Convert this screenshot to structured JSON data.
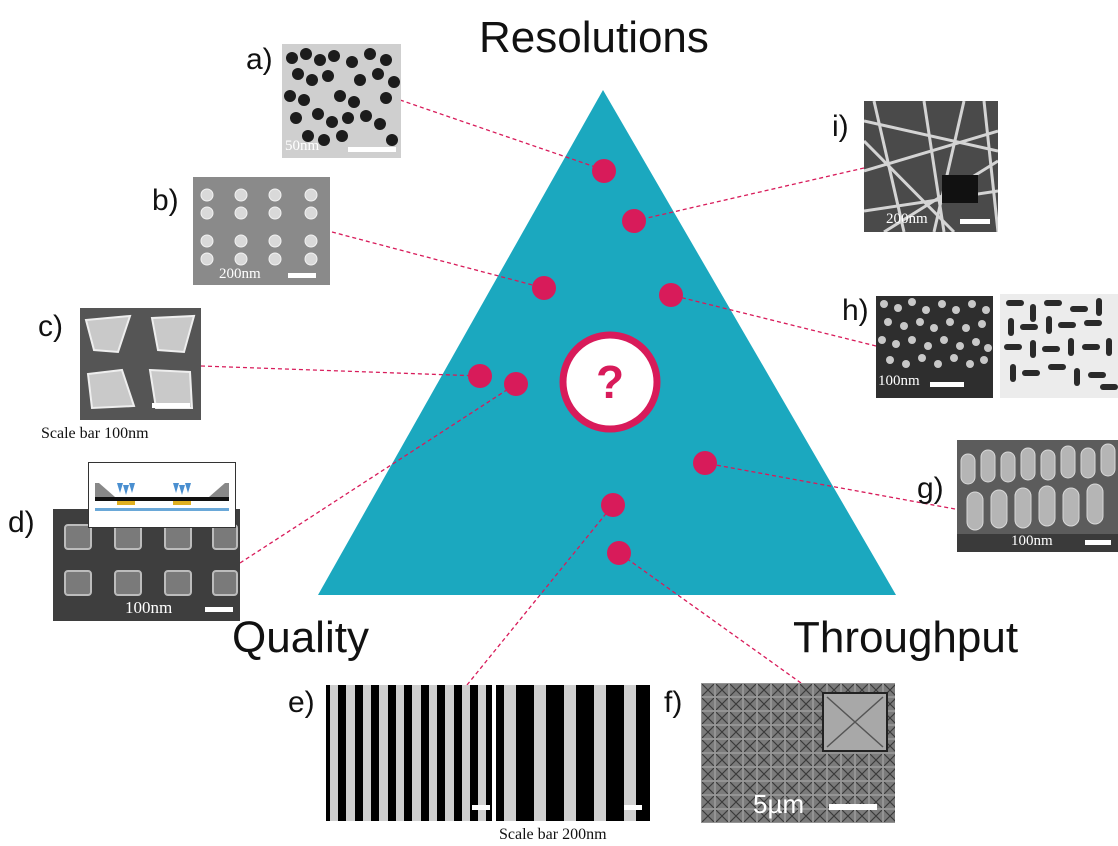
{
  "corners": {
    "top": "Resolutions",
    "bottom_left": "Quality",
    "bottom_right": "Throughput"
  },
  "center_symbol": "?",
  "panels": {
    "a": {
      "label": "a)",
      "scale": "50nm"
    },
    "b": {
      "label": "b)",
      "scale": "200nm"
    },
    "c": {
      "label": "c)",
      "caption": "Scale bar  100nm"
    },
    "d": {
      "label": "d)",
      "scale": "100nm"
    },
    "e": {
      "label": "e)",
      "caption": "Scale bar  200nm"
    },
    "f": {
      "label": "f)",
      "scale": "5µm"
    },
    "g": {
      "label": "g)",
      "scale": "100nm"
    },
    "h": {
      "label": "h)",
      "scale": "100nm"
    },
    "i": {
      "label": "i)",
      "scale": "200nm"
    }
  },
  "colors": {
    "triangle": "#1BA8BF",
    "dot": "#D81B5A",
    "connector": "#D81B5A"
  }
}
